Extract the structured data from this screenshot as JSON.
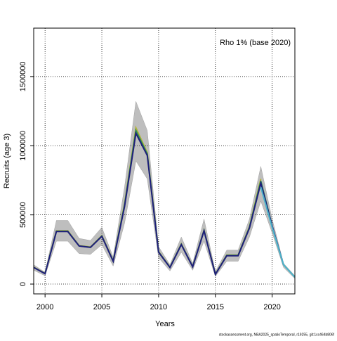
{
  "chart_data": {
    "type": "line",
    "annotation": "Rho 1% (base 2020)",
    "xlabel": "Years",
    "ylabel": "Recruits (age 3)",
    "footer": "stockassessment.org, NBA2025_spatioTemporal, r19255, git:1cc464b806f",
    "x": [
      1999,
      2000,
      2001,
      2002,
      2003,
      2004,
      2005,
      2006,
      2007,
      2008,
      2009,
      2010,
      2011,
      2012,
      2013,
      2014,
      2015,
      2016,
      2017,
      2018,
      2019,
      2020,
      2021,
      2022
    ],
    "band": {
      "color": "#bebebe",
      "upper": [
        140000,
        85000,
        460000,
        460000,
        330000,
        315000,
        410000,
        195000,
        700000,
        1320000,
        1110000,
        270000,
        140000,
        340000,
        150000,
        470000,
        90000,
        245000,
        245000,
        470000,
        850000,
        470000,
        150000,
        60000
      ],
      "lower": [
        100000,
        60000,
        310000,
        310000,
        220000,
        215000,
        285000,
        130000,
        440000,
        890000,
        760000,
        190000,
        95000,
        230000,
        100000,
        310000,
        55000,
        165000,
        165000,
        340000,
        600000,
        370000,
        120000,
        40000
      ]
    },
    "series": [
      {
        "color": "#b5b53a",
        "values": [
          122000,
          77000,
          385000,
          385000,
          278000,
          268000,
          350000,
          168000,
          580000,
          1130000,
          950000,
          235000,
          122000,
          290000,
          127000,
          390000,
          72000,
          210000,
          210000,
          415000,
          760000,
          null,
          null,
          null
        ]
      },
      {
        "color": "#2e8b57",
        "values": [
          120000,
          76000,
          382000,
          382000,
          276000,
          266000,
          347000,
          166000,
          570000,
          1110000,
          940000,
          232000,
          121000,
          287000,
          126000,
          387000,
          71000,
          207000,
          207000,
          410000,
          745000,
          420000,
          null,
          null
        ]
      },
      {
        "color": "#1f1f7a",
        "values": [
          120000,
          75000,
          380000,
          380000,
          275000,
          265000,
          345000,
          165000,
          560000,
          1090000,
          930000,
          230000,
          120000,
          285000,
          125000,
          385000,
          70000,
          205000,
          205000,
          405000,
          730000,
          420000,
          140000,
          null
        ]
      },
      {
        "color": "#4ab3c9",
        "values": [
          null,
          null,
          null,
          null,
          null,
          null,
          null,
          null,
          null,
          null,
          null,
          null,
          null,
          null,
          null,
          null,
          null,
          null,
          null,
          null,
          700000,
          410000,
          140000,
          50000
        ]
      }
    ],
    "xlim": [
      1999,
      2022
    ],
    "ylim": [
      -71000,
      1850000
    ],
    "xticks": [
      2000,
      2005,
      2010,
      2015,
      2020
    ],
    "yticks": [
      0,
      500000,
      1000000,
      1500000
    ],
    "grid": true
  }
}
